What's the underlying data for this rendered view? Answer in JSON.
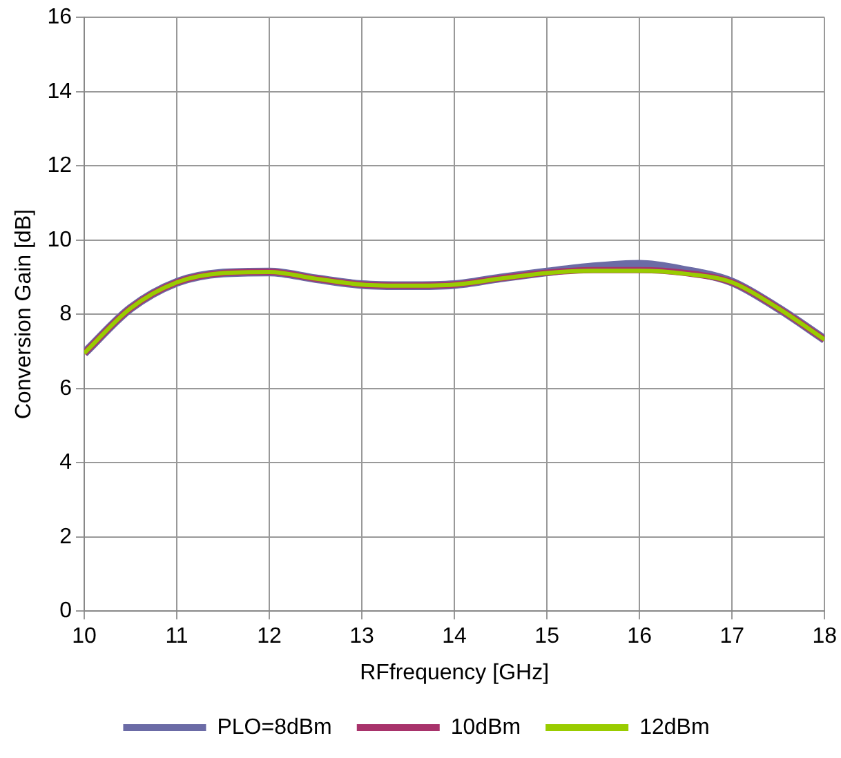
{
  "chart_data": {
    "type": "line",
    "xlabel": "RFfrequency [GHz]",
    "ylabel": "Conversion Gain [dB]",
    "x": [
      10,
      10.5,
      11,
      11.5,
      12,
      12.5,
      13,
      13.5,
      14,
      14.5,
      15,
      15.5,
      16,
      16.5,
      17,
      17.5,
      18
    ],
    "series": [
      {
        "name": "PLO=8dBm",
        "color": "#6b6ba6",
        "values": [
          6.95,
          8.16,
          8.86,
          9.11,
          9.14,
          8.96,
          8.8,
          8.77,
          8.8,
          8.98,
          9.14,
          9.28,
          9.35,
          9.18,
          8.87,
          8.16,
          7.32
        ]
      },
      {
        "name": "10dBm",
        "color": "#a8336b",
        "values": [
          6.95,
          8.16,
          8.86,
          9.11,
          9.14,
          8.96,
          8.8,
          8.77,
          8.8,
          8.97,
          9.12,
          9.19,
          9.19,
          9.11,
          8.86,
          8.16,
          7.32
        ]
      },
      {
        "name": "12dBm",
        "color": "#99cc00",
        "values": [
          6.95,
          8.16,
          8.86,
          9.11,
          9.14,
          8.96,
          8.8,
          8.77,
          8.8,
          8.96,
          9.11,
          9.17,
          9.17,
          9.09,
          8.86,
          8.16,
          7.32
        ]
      }
    ],
    "xlim": [
      10,
      18
    ],
    "xticks": [
      10,
      11,
      12,
      13,
      14,
      15,
      16,
      17,
      18
    ],
    "ylim": [
      0,
      16
    ],
    "yticks": [
      0,
      2,
      4,
      6,
      8,
      10,
      12,
      14,
      16
    ],
    "grid": true,
    "legend": "bottom",
    "marker": "none",
    "line_style": "solid"
  }
}
